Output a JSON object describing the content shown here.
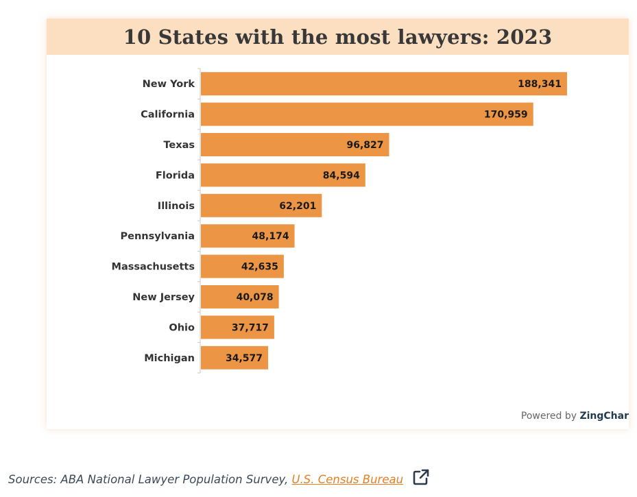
{
  "chart_data": {
    "type": "bar",
    "orientation": "horizontal",
    "title": "10 States with the most lawyers: 2023",
    "categories": [
      "New York",
      "California",
      "Texas",
      "Florida",
      "Illinois",
      "Pennsylvania",
      "Massachusetts",
      "New Jersey",
      "Ohio",
      "Michigan"
    ],
    "values": [
      188341,
      170959,
      96827,
      84594,
      62201,
      48174,
      42635,
      40078,
      37717,
      34577
    ],
    "value_labels": [
      "188,341",
      "170,959",
      "96,827",
      "84,594",
      "62,201",
      "48,174",
      "42,635",
      "40,078",
      "37,717",
      "34,577"
    ],
    "xlim": [
      0,
      200000
    ],
    "bar_color": "#ec9645",
    "grid": false,
    "legend": "none"
  },
  "credit": {
    "prefix": "Powered by ",
    "brand": "ZingChar"
  },
  "sources": {
    "prefix": "Sources: ABA National Lawyer Population Survey, ",
    "link_text": "U.S. Census Bureau"
  },
  "icons": {
    "external_link": "external-link-icon"
  }
}
